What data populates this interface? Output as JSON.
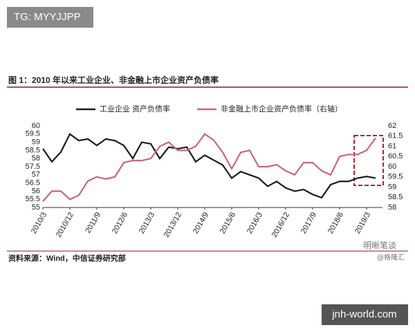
{
  "watermarks": [
    "TG: MYYJJPP",
    "jnh-world.com",
    "明晰笔谈",
    "@格隆汇"
  ],
  "chart_data": {
    "type": "line",
    "title": "图 1：2010 年以来工业企业、非金融上市企业资产负债率",
    "source": "资料来源：Wind，中信证券研究部",
    "categories": [
      "2010/3",
      null,
      null,
      "2010/12",
      null,
      null,
      "2011/9",
      null,
      null,
      "2012/6",
      null,
      null,
      "2013/3",
      null,
      null,
      "2013/12",
      null,
      null,
      "2014/9",
      null,
      null,
      "2015/6",
      null,
      null,
      "2016/3",
      null,
      null,
      "2016/12",
      null,
      null,
      "2017/9",
      null,
      null,
      "2018/6",
      null,
      null,
      "2019/3",
      null
    ],
    "series": [
      {
        "name": "工业企业 资产负债率",
        "color": "#1a1a1a",
        "values": [
          58.6,
          57.8,
          58.4,
          59.5,
          59.1,
          59.2,
          58.8,
          59.2,
          59.1,
          58.8,
          58.0,
          59.0,
          58.9,
          58.0,
          58.7,
          58.6,
          58.7,
          57.8,
          58.2,
          57.9,
          57.6,
          56.8,
          57.2,
          57.0,
          56.8,
          56.3,
          56.6,
          56.2,
          56.0,
          56.1,
          55.8,
          55.6,
          56.4,
          56.6,
          56.6,
          56.8,
          56.9,
          56.8
        ]
      },
      {
        "name": "非金融上市企业资产负债率（右轴）",
        "color": "#c9677b",
        "axis": "y2",
        "values": [
          58.3,
          58.8,
          58.8,
          58.4,
          58.6,
          59.3,
          59.5,
          59.4,
          59.5,
          60.2,
          60.3,
          60.3,
          60.4,
          61.0,
          61.2,
          60.8,
          60.8,
          61.0,
          61.6,
          61.3,
          60.7,
          59.9,
          60.7,
          60.8,
          60.0,
          60.0,
          60.1,
          59.8,
          59.6,
          60.2,
          60.2,
          59.8,
          59.6,
          60.5,
          60.6,
          60.6,
          60.8,
          61.4
        ]
      }
    ],
    "ylim": [
      55,
      60
    ],
    "yticks": [
      55,
      55.5,
      56,
      56.5,
      57,
      57.5,
      58,
      58.5,
      59,
      59.5,
      60
    ],
    "y2lim": [
      58,
      62
    ],
    "y2ticks": [
      58,
      58.5,
      59,
      59.5,
      60,
      60.5,
      61,
      61.5,
      62
    ],
    "grid": false
  }
}
